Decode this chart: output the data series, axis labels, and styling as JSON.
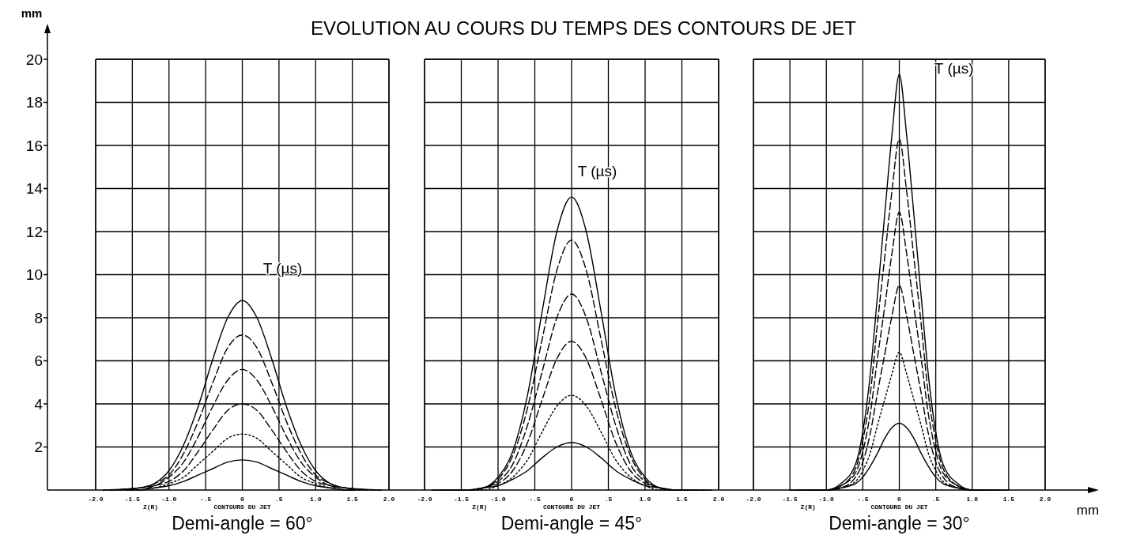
{
  "chart_data": [
    {
      "type": "line",
      "title": "EVOLUTION AU COURS DU TEMPS DES CONTOURS DE JET",
      "subtitle": "Demi-angle = 60°",
      "ylabel": "mm",
      "xlabel": "CONTOURS DU JET",
      "grid": true,
      "xlim": [
        -2,
        2
      ],
      "ylim": [
        0,
        20
      ],
      "xticks": [
        {
          "value": -2,
          "label": "-2.0"
        },
        {
          "value": -1.5,
          "label": "-1.5"
        },
        {
          "value": -1,
          "label": "-1.0"
        },
        {
          "value": -0.5,
          "label": "-.5"
        },
        {
          "value": 0,
          "label": "0"
        },
        {
          "value": 0.5,
          "label": ".5"
        },
        {
          "value": 1,
          "label": "1.0"
        },
        {
          "value": 1.5,
          "label": "1.5"
        },
        {
          "value": 2,
          "label": "2.0"
        }
      ],
      "yticks": [
        2,
        4,
        6,
        8,
        10,
        12,
        14,
        16,
        18,
        20
      ],
      "annotations": [
        "Z(R)",
        "T (µs)"
      ],
      "series": [
        {
          "color": "#000000",
          "line_style": "solid",
          "x": [
            -1.4,
            -1.2,
            -1,
            -0.8,
            -0.6,
            -0.4,
            -0.2,
            0,
            0.2,
            0.4,
            0.6,
            0.8,
            1,
            1.2,
            1.4
          ],
          "values": [
            0.0,
            0.1,
            0.2,
            0.4,
            0.7,
            1.0,
            1.3,
            1.4,
            1.3,
            1.0,
            0.7,
            0.4,
            0.2,
            0.1,
            0.0
          ]
        },
        {
          "color": "#000000",
          "line_style": "dotted",
          "x": [
            -1.5,
            -1.4,
            -1.2,
            -1,
            -0.8,
            -0.6,
            -0.4,
            -0.2,
            0,
            0.2,
            0.4,
            0.6,
            0.8,
            1,
            1.2,
            1.4,
            1.5
          ],
          "values": [
            0.0,
            0.0,
            0.1,
            0.3,
            0.6,
            1.2,
            1.8,
            2.4,
            2.6,
            2.4,
            1.8,
            1.2,
            0.6,
            0.3,
            0.1,
            0.0,
            0.0
          ]
        },
        {
          "color": "#000000",
          "line_style": "dashed",
          "x": [
            -1.6,
            -1.4,
            -1.2,
            -1,
            -0.8,
            -0.6,
            -0.4,
            -0.2,
            0,
            0.2,
            0.4,
            0.6,
            0.8,
            1,
            1.2,
            1.4,
            1.6
          ],
          "values": [
            0.0,
            0.0,
            0.2,
            0.4,
            0.9,
            1.8,
            2.8,
            3.7,
            4.0,
            3.7,
            2.8,
            1.8,
            0.9,
            0.4,
            0.2,
            0.0,
            0.0
          ]
        },
        {
          "color": "#000000",
          "line_style": "dashed",
          "x": [
            -1.7,
            -1.4,
            -1.2,
            -1,
            -0.8,
            -0.6,
            -0.4,
            -0.2,
            0,
            0.2,
            0.4,
            0.6,
            0.8,
            1,
            1.2,
            1.4,
            1.7
          ],
          "values": [
            0.0,
            0.1,
            0.2,
            0.6,
            1.3,
            2.5,
            3.9,
            5.1,
            5.6,
            5.1,
            3.9,
            2.5,
            1.3,
            0.6,
            0.2,
            0.1,
            0.0
          ]
        },
        {
          "color": "#000000",
          "line_style": "dashed",
          "x": [
            -1.8,
            -1.4,
            -1.2,
            -1,
            -0.8,
            -0.6,
            -0.4,
            -0.2,
            0,
            0.2,
            0.4,
            0.6,
            0.8,
            1,
            1.2,
            1.4,
            1.8
          ],
          "values": [
            0.0,
            0.1,
            0.3,
            0.7,
            1.7,
            3.2,
            5.0,
            6.6,
            7.2,
            6.6,
            5.0,
            3.2,
            1.7,
            0.7,
            0.3,
            0.1,
            0.0
          ]
        },
        {
          "color": "#000000",
          "line_style": "solid",
          "x": [
            -1.9,
            -1.4,
            -1.2,
            -1,
            -0.8,
            -0.6,
            -0.4,
            -0.2,
            0,
            0.2,
            0.4,
            0.6,
            0.8,
            1,
            1.2,
            1.4,
            1.9
          ],
          "values": [
            0.0,
            0.1,
            0.3,
            0.9,
            2.1,
            3.9,
            6.1,
            8.0,
            8.8,
            8.0,
            6.1,
            3.9,
            2.1,
            0.9,
            0.3,
            0.1,
            0.0
          ]
        }
      ]
    },
    {
      "type": "line",
      "subtitle": "Demi-angle = 45°",
      "xlabel": "CONTOURS DU JET",
      "grid": true,
      "tick_labels": "x",
      "xlim": [
        -2,
        2
      ],
      "ylim": [
        0,
        20
      ],
      "xticks": [
        {
          "value": -2,
          "label": "-2.0"
        },
        {
          "value": -1.5,
          "label": "-1.5"
        },
        {
          "value": -1,
          "label": "-1.0"
        },
        {
          "value": -0.5,
          "label": "-.5"
        },
        {
          "value": 0,
          "label": "0"
        },
        {
          "value": 0.5,
          "label": ".5"
        },
        {
          "value": 1,
          "label": "1.0"
        },
        {
          "value": 1.5,
          "label": "1.5"
        },
        {
          "value": 2,
          "label": "2.0"
        }
      ],
      "yticks": [
        2,
        4,
        6,
        8,
        10,
        12,
        14,
        16,
        18,
        20
      ],
      "annotations": [
        "Z(R)",
        "T (µs)"
      ],
      "series": [
        {
          "color": "#000000",
          "line_style": "solid",
          "x": [
            -1.4,
            -1.2,
            -1,
            -0.8,
            -0.6,
            -0.4,
            -0.2,
            0,
            0.2,
            0.4,
            0.6,
            0.8,
            1,
            1.2,
            1.4
          ],
          "values": [
            0.0,
            0.1,
            0.2,
            0.5,
            0.9,
            1.5,
            2.0,
            2.2,
            2.0,
            1.5,
            0.9,
            0.5,
            0.2,
            0.1,
            0.0
          ]
        },
        {
          "color": "#000000",
          "line_style": "dotted",
          "x": [
            -1.5,
            -1.4,
            -1.2,
            -1,
            -0.8,
            -0.6,
            -0.4,
            -0.2,
            0,
            0.2,
            0.4,
            0.6,
            0.8,
            1,
            1.2,
            1.4,
            1.5
          ],
          "values": [
            0.0,
            0.0,
            0.0,
            0.2,
            0.6,
            1.4,
            2.7,
            3.9,
            4.4,
            3.9,
            2.7,
            1.4,
            0.6,
            0.2,
            0.0,
            0.0,
            0.0
          ]
        },
        {
          "color": "#000000",
          "line_style": "dashed",
          "x": [
            -1.6,
            -1.4,
            -1.2,
            -1,
            -0.8,
            -0.6,
            -0.4,
            -0.2,
            0,
            0.2,
            0.4,
            0.6,
            0.8,
            1,
            1.2,
            1.4,
            1.6
          ],
          "values": [
            0.0,
            0.0,
            0.1,
            0.3,
            0.9,
            2.2,
            4.2,
            6.1,
            6.9,
            6.1,
            4.2,
            2.2,
            0.9,
            0.3,
            0.1,
            0.0,
            0.0
          ]
        },
        {
          "color": "#000000",
          "line_style": "dashed",
          "x": [
            -1.7,
            -1.4,
            -1.2,
            -1,
            -0.8,
            -0.6,
            -0.4,
            -0.2,
            0,
            0.2,
            0.4,
            0.6,
            0.8,
            1,
            1.2,
            1.4,
            1.7
          ],
          "values": [
            0.0,
            0.0,
            0.1,
            0.4,
            1.2,
            3.0,
            5.5,
            8.0,
            9.1,
            8.0,
            5.5,
            3.0,
            1.2,
            0.4,
            0.1,
            0.0,
            0.0
          ]
        },
        {
          "color": "#000000",
          "line_style": "dashed",
          "x": [
            -1.8,
            -1.4,
            -1.2,
            -1,
            -0.8,
            -0.6,
            -0.4,
            -0.2,
            0,
            0.2,
            0.4,
            0.6,
            0.8,
            1,
            1.2,
            1.4,
            1.8
          ],
          "values": [
            0.0,
            0.0,
            0.1,
            0.5,
            1.6,
            3.8,
            7.0,
            10.2,
            11.6,
            10.2,
            7.0,
            3.8,
            1.6,
            0.5,
            0.1,
            0.0,
            0.0
          ]
        },
        {
          "color": "#000000",
          "line_style": "solid",
          "x": [
            -1.9,
            -1.4,
            -1.2,
            -1,
            -0.8,
            -0.6,
            -0.4,
            -0.2,
            0,
            0.2,
            0.4,
            0.6,
            0.8,
            1,
            1.2,
            1.4,
            1.9
          ],
          "values": [
            0.0,
            0.0,
            0.1,
            0.6,
            1.8,
            4.4,
            8.3,
            12.0,
            13.6,
            12.0,
            8.3,
            4.4,
            1.8,
            0.6,
            0.1,
            0.0,
            0.0
          ]
        }
      ]
    },
    {
      "type": "line",
      "subtitle": "Demi-angle = 30°",
      "xlabel": "CONTOURS DU JET",
      "grid": true,
      "tick_labels": "x",
      "xlim": [
        -2,
        2
      ],
      "ylim": [
        0,
        20
      ],
      "xticks": [
        {
          "value": -2,
          "label": "-2.0"
        },
        {
          "value": -1.5,
          "label": "-1.5"
        },
        {
          "value": -1,
          "label": "-1.0"
        },
        {
          "value": -0.5,
          "label": "-.5"
        },
        {
          "value": 0,
          "label": "0"
        },
        {
          "value": 0.5,
          "label": ".5"
        },
        {
          "value": 1,
          "label": "1.0"
        },
        {
          "value": 1.5,
          "label": "1.5"
        },
        {
          "value": 2,
          "label": "2.0"
        }
      ],
      "yticks": [
        2,
        4,
        6,
        8,
        10,
        12,
        14,
        16,
        18,
        20
      ],
      "annotations": [
        "Z(R)",
        "T (µs)",
        "mm"
      ],
      "series": [
        {
          "color": "#000000",
          "line_style": "solid",
          "x": [
            -1,
            -0.8,
            -0.6,
            -0.5,
            -0.4,
            -0.3,
            -0.2,
            -0.1,
            0,
            0.1,
            0.2,
            0.3,
            0.4,
            0.5,
            0.6,
            0.8,
            1
          ],
          "values": [
            0.0,
            0.1,
            0.3,
            0.6,
            1.1,
            1.7,
            2.4,
            2.9,
            3.1,
            2.9,
            2.4,
            1.7,
            1.1,
            0.6,
            0.3,
            0.1,
            0.0
          ]
        },
        {
          "color": "#000000",
          "line_style": "dotted",
          "x": [
            -1.1,
            -1,
            -0.8,
            -0.6,
            -0.5,
            -0.4,
            -0.3,
            -0.2,
            -0.1,
            0,
            0.1,
            0.2,
            0.3,
            0.4,
            0.5,
            0.6,
            0.8,
            1,
            1.1
          ],
          "values": [
            0.0,
            0.0,
            0.1,
            0.4,
            0.9,
            1.7,
            3.0,
            4.2,
            5.4,
            6.4,
            5.4,
            4.2,
            3.0,
            1.7,
            0.9,
            0.4,
            0.1,
            0.0,
            0.0
          ]
        },
        {
          "color": "#000000",
          "line_style": "dashed",
          "x": [
            -1.2,
            -1,
            -0.8,
            -0.6,
            -0.5,
            -0.4,
            -0.3,
            -0.2,
            -0.1,
            0,
            0.1,
            0.2,
            0.3,
            0.4,
            0.5,
            0.6,
            0.8,
            1,
            1.2
          ],
          "values": [
            0.0,
            0.0,
            0.1,
            0.6,
            1.3,
            2.6,
            4.5,
            6.3,
            8.1,
            9.5,
            8.1,
            6.3,
            4.5,
            2.6,
            1.3,
            0.6,
            0.1,
            0.0,
            0.0
          ]
        },
        {
          "color": "#000000",
          "line_style": "dashed",
          "x": [
            -1.3,
            -1,
            -0.8,
            -0.6,
            -0.5,
            -0.4,
            -0.3,
            -0.2,
            -0.1,
            0,
            0.1,
            0.2,
            0.3,
            0.4,
            0.5,
            0.6,
            0.8,
            1,
            1.3
          ],
          "values": [
            0.0,
            0.0,
            0.2,
            0.8,
            1.8,
            3.5,
            6.1,
            8.5,
            11.0,
            12.9,
            11.0,
            8.5,
            6.1,
            3.5,
            1.8,
            0.8,
            0.2,
            0.0,
            0.0
          ]
        },
        {
          "color": "#000000",
          "line_style": "dashed",
          "x": [
            -1.4,
            -1,
            -0.8,
            -0.6,
            -0.5,
            -0.4,
            -0.3,
            -0.2,
            -0.1,
            0,
            0.1,
            0.2,
            0.3,
            0.4,
            0.5,
            0.6,
            0.8,
            1,
            1.4
          ],
          "values": [
            0.0,
            0.0,
            0.2,
            1.0,
            2.3,
            4.4,
            7.7,
            10.8,
            13.9,
            16.3,
            13.9,
            10.8,
            7.7,
            4.4,
            2.3,
            1.0,
            0.2,
            0.0,
            0.0
          ]
        },
        {
          "color": "#000000",
          "line_style": "solid",
          "x": [
            -1.5,
            -1,
            -0.8,
            -0.6,
            -0.5,
            -0.4,
            -0.3,
            -0.2,
            -0.1,
            0,
            0.1,
            0.2,
            0.3,
            0.4,
            0.5,
            0.6,
            0.8,
            1,
            1.5
          ],
          "values": [
            0.0,
            0.0,
            0.3,
            1.2,
            2.7,
            5.3,
            9.0,
            12.8,
            16.5,
            19.3,
            16.5,
            12.8,
            9.0,
            5.3,
            2.7,
            1.2,
            0.3,
            0.0,
            0.0
          ]
        }
      ]
    }
  ]
}
